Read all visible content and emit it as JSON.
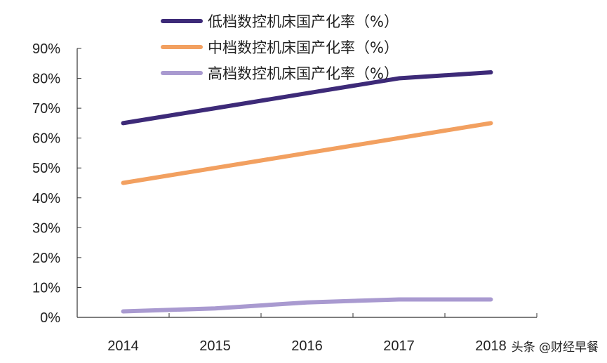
{
  "chart_data": {
    "type": "line",
    "categories": [
      "2014",
      "2015",
      "2016",
      "2017",
      "2018"
    ],
    "y_ticks": [
      "0%",
      "10%",
      "20%",
      "30%",
      "40%",
      "50%",
      "60%",
      "70%",
      "80%",
      "90%"
    ],
    "ylim": [
      0,
      90
    ],
    "grid": false,
    "legend_position": "top",
    "series": [
      {
        "name": "低档数控机床国产化率（%）",
        "color": "#3d2a78",
        "values": [
          65,
          70,
          75,
          80,
          82
        ]
      },
      {
        "name": "中档数控机床国产化率（%）",
        "color": "#f2a060",
        "values": [
          45,
          50,
          55,
          60,
          65
        ]
      },
      {
        "name": "高档数控机床国产化率（%）",
        "color": "#a99ad0",
        "values": [
          2,
          3,
          5,
          6,
          6
        ]
      }
    ]
  },
  "watermark": "头条 @财经早餐"
}
